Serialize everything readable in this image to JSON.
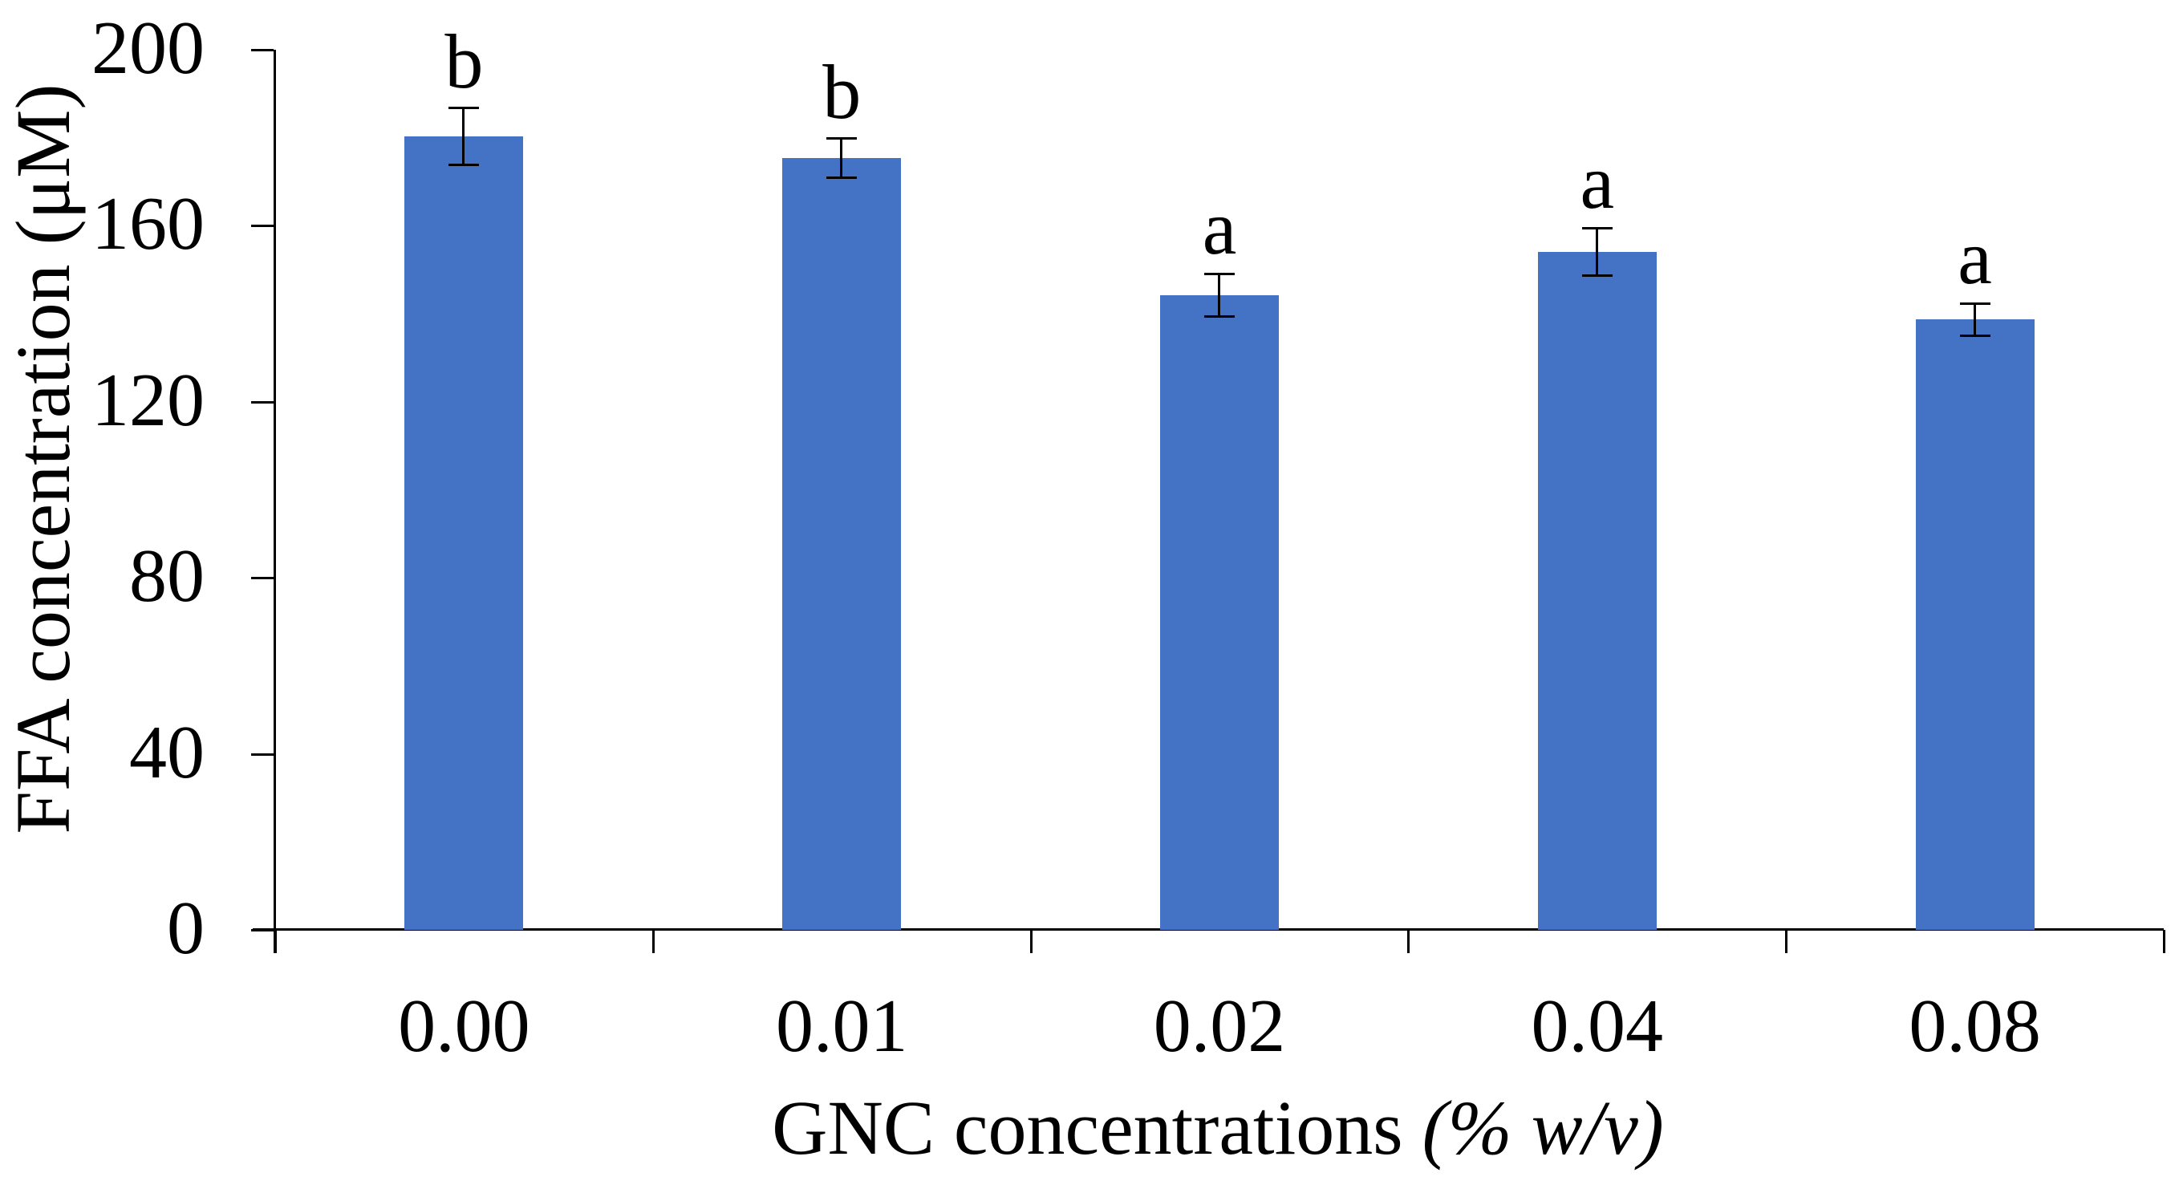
{
  "chart_data": {
    "type": "bar",
    "title": "",
    "categories": [
      "0.00",
      "0.01",
      "0.02",
      "0.04",
      "0.08"
    ],
    "values": [
      180.3,
      175.4,
      144.2,
      154.1,
      138.7
    ],
    "error_bars": [
      6.5,
      4.5,
      5.0,
      5.5,
      3.7
    ],
    "significance_letters": [
      "b",
      "b",
      "a",
      "a",
      "a"
    ],
    "xlabel_plain": "GNC concentrations ",
    "xlabel_italic": "(% w/v)",
    "ylabel": "FFA concentration (μM)",
    "ylim": [
      0,
      200
    ],
    "yticks": [
      0,
      40,
      80,
      120,
      160,
      200
    ],
    "bar_color": "#4472C4",
    "error_bar_color": "#000000",
    "axis_color": "#000000",
    "grid": false,
    "legend": false
  }
}
